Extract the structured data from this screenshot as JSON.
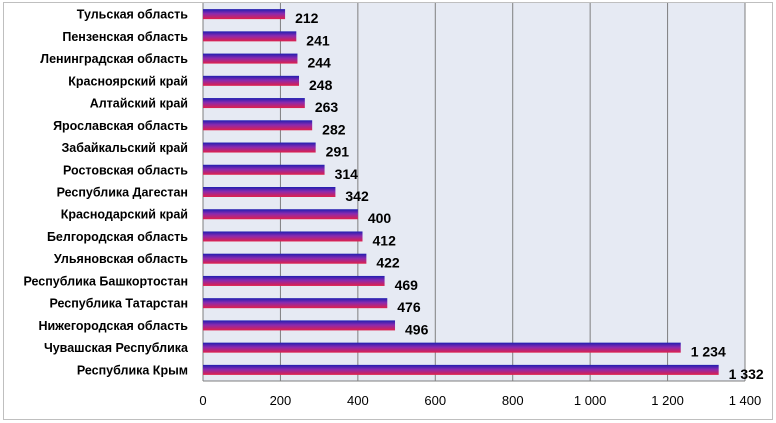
{
  "chart_data": {
    "type": "bar",
    "orientation": "horizontal",
    "categories": [
      "Тульская область",
      "Пензенская область",
      "Ленинградская область",
      "Красноярский край",
      "Алтайский край",
      "Ярославская область",
      "Забайкальский край",
      "Ростовская область",
      "Республика Дагестан",
      "Краснодарский край",
      "Белгородская область",
      "Ульяновская область",
      "Республика Башкортостан",
      "Республика Татарстан",
      "Нижегородская область",
      "Чувашская Республика",
      "Республика Крым"
    ],
    "values": [
      212,
      241,
      244,
      248,
      263,
      282,
      291,
      314,
      342,
      400,
      412,
      422,
      469,
      476,
      496,
      1234,
      1332
    ],
    "data_labels": [
      "212",
      "241",
      "244",
      "248",
      "263",
      "282",
      "291",
      "314",
      "342",
      "400",
      "412",
      "422",
      "469",
      "476",
      "496",
      "1 234",
      "1 332"
    ],
    "xlim": [
      0,
      1400
    ],
    "x_ticks": [
      0,
      200,
      400,
      600,
      800,
      1000,
      1200,
      1400
    ],
    "x_tick_labels": [
      "0",
      "200",
      "400",
      "600",
      "800",
      "1 000",
      "1 200",
      "1 400"
    ],
    "grid": "vertical",
    "legend": "none",
    "colors": {
      "plot_background": "#e6eaf3",
      "gridline": "#7f7f7f",
      "bar_top": "#1f1fb0",
      "bar_mid": "#8a2ab0",
      "bar_bottom": "#e0204a"
    }
  }
}
